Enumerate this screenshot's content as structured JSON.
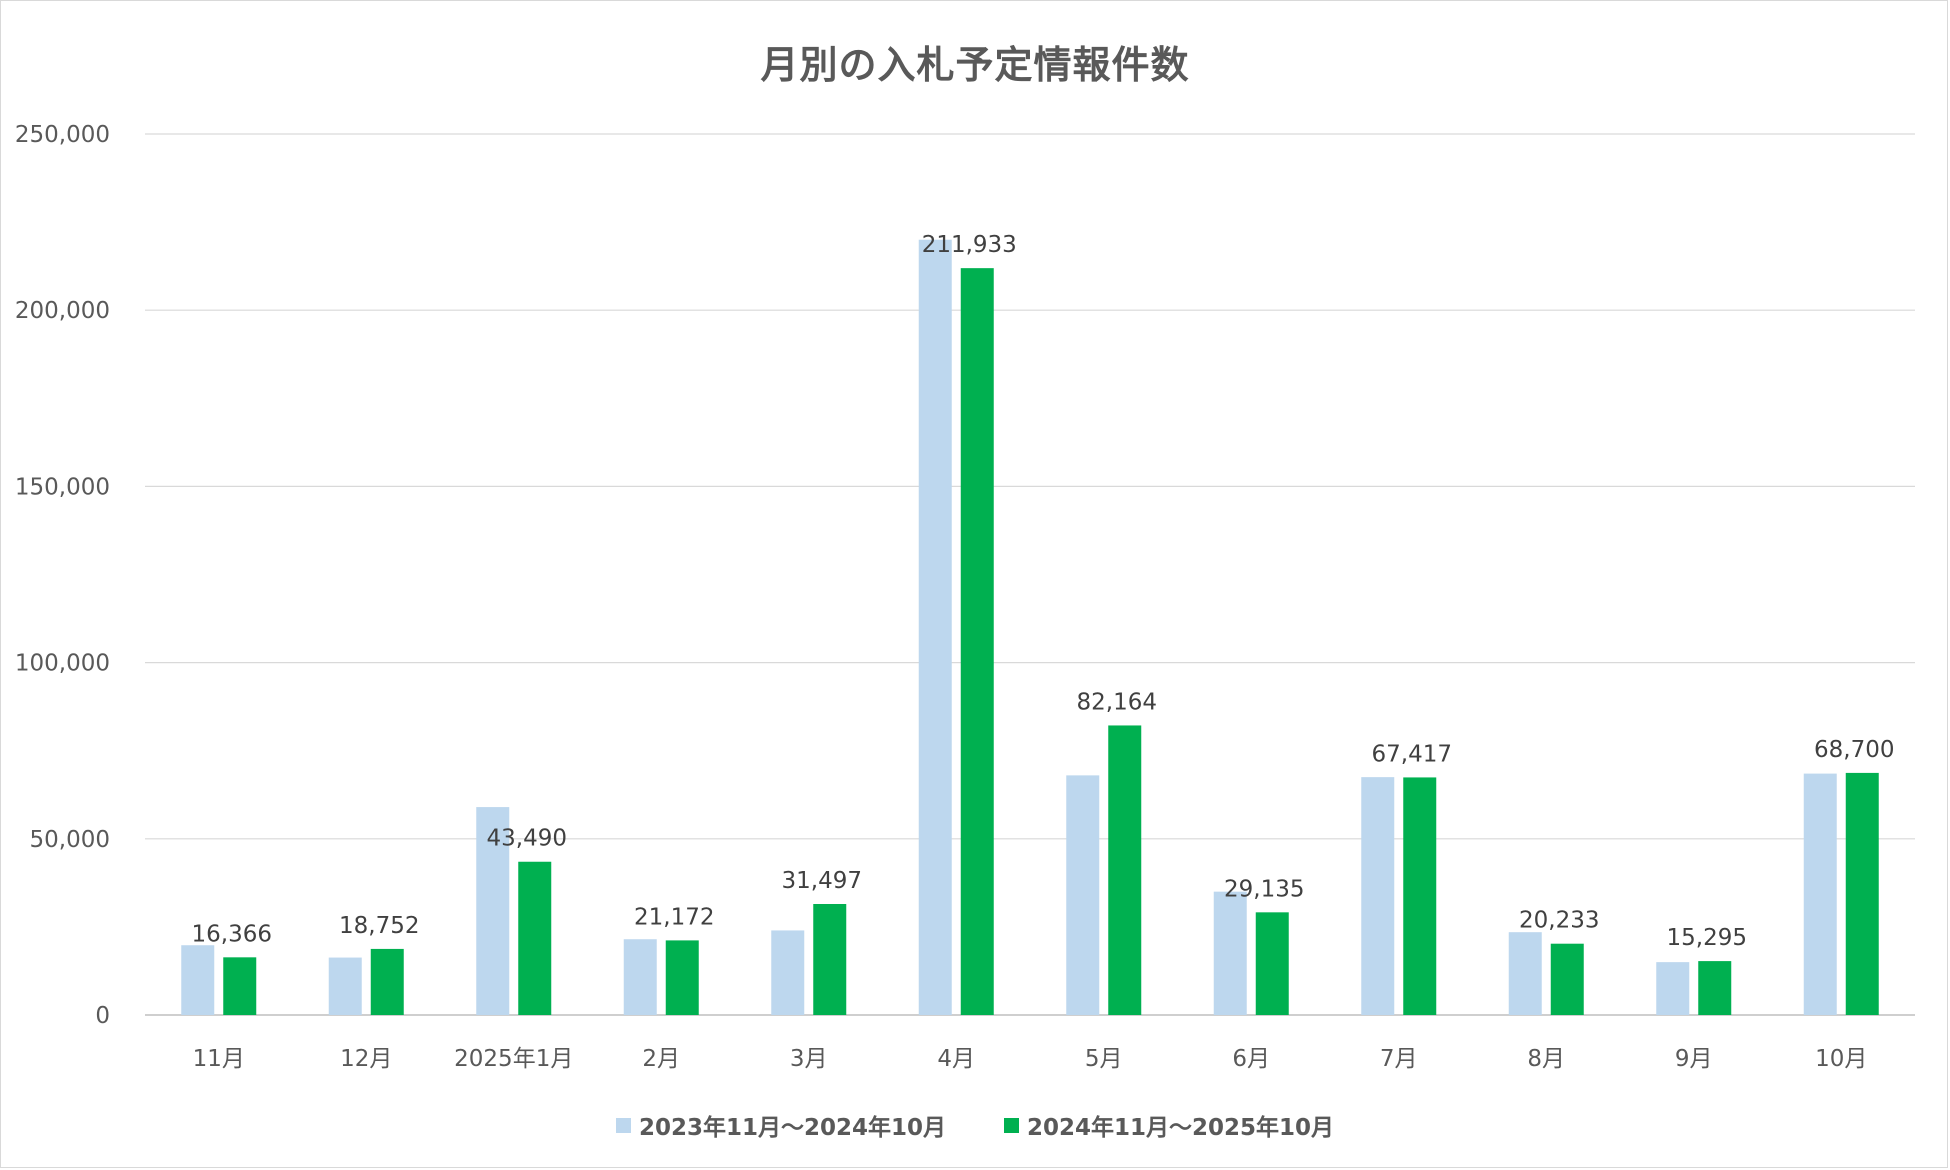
{
  "chart_data": {
    "type": "bar",
    "title": "月別の入札予定情報件数",
    "categories": [
      "11月",
      "12月",
      "2025年1月",
      "2月",
      "3月",
      "4月",
      "5月",
      "6月",
      "7月",
      "8月",
      "9月",
      "10月"
    ],
    "series": [
      {
        "name": "2023年11月～2024年10月",
        "color": "#bdd7ee",
        "values": [
          19800,
          16300,
          59000,
          21500,
          24000,
          220000,
          68000,
          35000,
          67500,
          23500,
          15000,
          68500
        ],
        "labels": []
      },
      {
        "name": "2024年11月～2025年10月",
        "color": "#00b050",
        "values": [
          16366,
          18752,
          43490,
          21172,
          31497,
          211933,
          82164,
          29135,
          67417,
          20233,
          15295,
          68700
        ],
        "labels": [
          "16,366",
          "18,752",
          "43,490",
          "21,172",
          "31,497",
          "211,933",
          "82,164",
          "29,135",
          "67,417",
          "20,233",
          "15,295",
          "68,700"
        ]
      }
    ],
    "yticks": [
      "0",
      "50,000",
      "100,000",
      "150,000",
      "200,000",
      "250,000"
    ],
    "ylim": [
      0,
      250000
    ],
    "grid": true,
    "legend_position": "bottom"
  }
}
